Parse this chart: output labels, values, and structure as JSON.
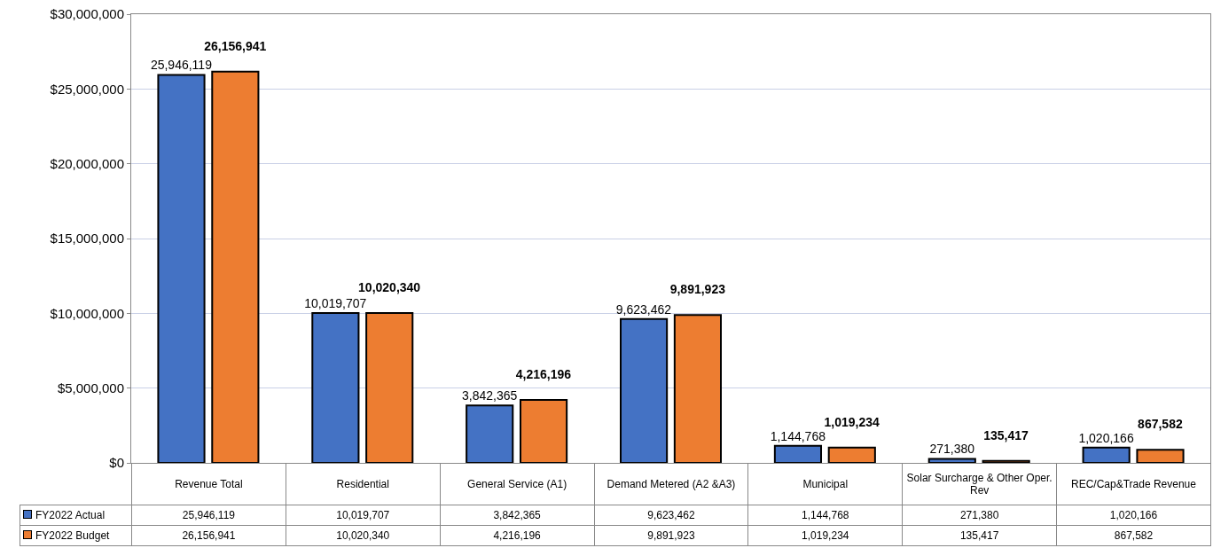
{
  "chart_data": {
    "type": "bar",
    "categories": [
      "Revenue Total",
      "Residential",
      "General Service (A1)",
      "Demand Metered (A2 &A3)",
      "Municipal",
      "Solar Surcharge & Other Oper. Rev",
      "REC/Cap&Trade Revenue"
    ],
    "series": [
      {
        "name": "FY2022 Actual",
        "color": "#4472c4",
        "values": [
          25946119,
          10019707,
          3842365,
          9623462,
          1144768,
          271380,
          1020166
        ],
        "value_labels": [
          "25,946,119",
          "10,019,707",
          "3,842,365",
          "9,623,462",
          "1,144,768",
          "271,380",
          "1,020,166"
        ]
      },
      {
        "name": "FY2022 Budget",
        "color": "#ed7d31",
        "values": [
          26156941,
          10020340,
          4216196,
          9891923,
          1019234,
          135417,
          867582
        ],
        "value_labels": [
          "26,156,941",
          "10,020,340",
          "4,216,196",
          "9,891,923",
          "1,019,234",
          "135,417",
          "867,582"
        ]
      }
    ],
    "ylim": [
      0,
      30000000
    ],
    "yticks": [
      {
        "value": 0,
        "label": "$0"
      },
      {
        "value": 5000000,
        "label": "$5,000,000"
      },
      {
        "value": 10000000,
        "label": "$10,000,000"
      },
      {
        "value": 15000000,
        "label": "$15,000,000"
      },
      {
        "value": 20000000,
        "label": "$20,000,000"
      },
      {
        "value": 25000000,
        "label": "$25,000,000"
      },
      {
        "value": 30000000,
        "label": "$30,000,000"
      }
    ],
    "grid": "y",
    "legend": "bottom left"
  }
}
